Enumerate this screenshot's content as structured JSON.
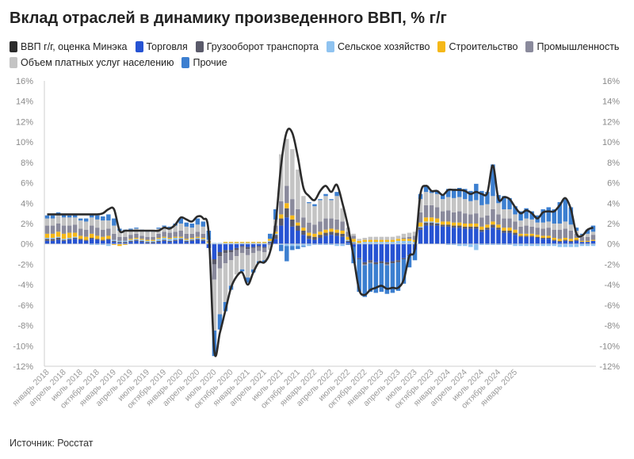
{
  "title": "Вклад отраслей в динамику произведенного ВВП, % г/г",
  "source": "Источник: Росстат",
  "chart_data": {
    "type": "bar",
    "stacked": true,
    "title": "Вклад отраслей в динамику произведенного ВВП, % г/г",
    "ylim": [
      -12,
      16
    ],
    "yticks": [
      -12,
      -10,
      -8,
      -6,
      -4,
      -2,
      0,
      2,
      4,
      6,
      8,
      10,
      12,
      14,
      16
    ],
    "ytick_labels_left": [
      "-12%",
      "-10%",
      "-8%",
      "-6%",
      "-4%",
      "-2%",
      "0%",
      "2%",
      "4%",
      "6%",
      "8%",
      "10%",
      "12%",
      "14%",
      "16%"
    ],
    "ytick_labels_right": [
      "-12%",
      "-10%",
      "-8%",
      "-6%",
      "-4%",
      "-2%",
      "0%",
      "2%",
      "4%",
      "6%",
      "8%",
      "10%",
      "12%",
      "14%",
      "16%"
    ],
    "grid": false,
    "legend_position": "top",
    "x_tick_labels": [
      {
        "i": 0,
        "label": "январь 2018"
      },
      {
        "i": 3,
        "label": "апрель 2018"
      },
      {
        "i": 6,
        "label": "июль 2018"
      },
      {
        "i": 9,
        "label": "октябрь 2018"
      },
      {
        "i": 12,
        "label": "январь 2019"
      },
      {
        "i": 15,
        "label": "апрель 2019"
      },
      {
        "i": 18,
        "label": "июль 2019"
      },
      {
        "i": 21,
        "label": "октябрь 2019"
      },
      {
        "i": 24,
        "label": "январь 2020"
      },
      {
        "i": 27,
        "label": "апрель 2020"
      },
      {
        "i": 30,
        "label": "июль 2020"
      },
      {
        "i": 33,
        "label": "октябрь 2020"
      },
      {
        "i": 36,
        "label": "январь 2021"
      },
      {
        "i": 39,
        "label": "апрель 2021"
      },
      {
        "i": 42,
        "label": "июль 2021"
      },
      {
        "i": 45,
        "label": "октябрь 2021"
      },
      {
        "i": 48,
        "label": "январь 2022"
      },
      {
        "i": 51,
        "label": "апрель 2022"
      },
      {
        "i": 54,
        "label": "июль 2022"
      },
      {
        "i": 57,
        "label": "октябрь 2022"
      },
      {
        "i": 60,
        "label": "январь 2023"
      },
      {
        "i": 63,
        "label": "апрель 2023"
      },
      {
        "i": 66,
        "label": "июль 2023"
      },
      {
        "i": 69,
        "label": "октябрь 2023"
      },
      {
        "i": 72,
        "label": "январь 2024"
      },
      {
        "i": 75,
        "label": "апрель 2024"
      },
      {
        "i": 78,
        "label": "июль 2024"
      },
      {
        "i": 81,
        "label": "октябрь 2024"
      },
      {
        "i": 84,
        "label": "январь 2025"
      }
    ],
    "series": [
      {
        "name": "ВВП г/г, оценка Минэка",
        "kind": "line",
        "color": "#2b2b2b",
        "values": [
          2.9,
          2.9,
          2.9,
          2.9,
          2.9,
          2.9,
          2.9,
          2.9,
          2.9,
          2.9,
          3.0,
          3.4,
          3.4,
          1.3,
          1.3,
          1.3,
          1.3,
          1.3,
          1.3,
          1.3,
          1.3,
          1.6,
          1.5,
          1.9,
          2.6,
          2.4,
          2.2,
          2.7,
          2.5,
          1.0,
          -10.5,
          -8.7,
          -6.5,
          -4.3,
          -3.2,
          -2.8,
          -4.0,
          -2.8,
          -1.8,
          -1.8,
          -0.8,
          2.0,
          7.8,
          11.0,
          10.9,
          8.5,
          5.5,
          4.7,
          4.3,
          5.2,
          5.7,
          5.1,
          5.8,
          4.0,
          1.7,
          -1.3,
          -4.5,
          -5.0,
          -4.5,
          -4.3,
          -4.1,
          -4.4,
          -4.3,
          -4.3,
          -3.5,
          -1.2,
          -0.5,
          4.9,
          5.7,
          5.2,
          5.2,
          4.8,
          5.3,
          5.3,
          5.3,
          5.2,
          4.9,
          5.1,
          4.9,
          5.0,
          7.7,
          4.4,
          4.6,
          4.4,
          3.6,
          3.0,
          3.3,
          3.0,
          2.5,
          3.1,
          3.2,
          3.2,
          3.8,
          4.5,
          3.4,
          1.0,
          0.8,
          1.4,
          1.6
        ]
      },
      {
        "name": "Торговля",
        "kind": "bar",
        "color": "#2653d3",
        "values": [
          0.3,
          0.3,
          0.4,
          0.3,
          0.4,
          0.5,
          0.4,
          0.3,
          0.5,
          0.4,
          0.3,
          0.4,
          0.2,
          0.1,
          0.1,
          0.2,
          0.3,
          0.2,
          0.1,
          0.1,
          0.2,
          0.3,
          0.2,
          0.3,
          0.4,
          0.2,
          0.3,
          0.4,
          0.3,
          -0.4,
          -1.5,
          -0.8,
          -0.6,
          -0.6,
          -0.4,
          -0.2,
          -0.3,
          -0.3,
          -0.2,
          -0.3,
          0.1,
          0.5,
          1.8,
          2.6,
          1.7,
          1.3,
          0.9,
          0.5,
          0.4,
          0.6,
          0.8,
          0.9,
          0.8,
          0.7,
          0.2,
          -0.3,
          -1.4,
          -1.8,
          -1.6,
          -1.8,
          -1.7,
          -1.8,
          -1.7,
          -1.6,
          -1.4,
          -1.1,
          -0.6,
          1.4,
          1.8,
          1.8,
          1.8,
          1.7,
          1.7,
          1.6,
          1.6,
          1.5,
          1.5,
          1.5,
          1.2,
          1.4,
          1.6,
          1.4,
          1.1,
          1.1,
          0.9,
          0.7,
          0.7,
          0.7,
          0.6,
          0.5,
          0.5,
          0.3,
          0.2,
          0.3,
          0.2,
          0.3,
          0.2,
          0.2,
          0.3
        ]
      },
      {
        "name": "Грузооборот транспорта",
        "kind": "bar",
        "color": "#5a5a6a",
        "values": [
          0.2,
          0.2,
          0.2,
          0.1,
          0.1,
          0.1,
          0.1,
          0.1,
          0.1,
          0.1,
          0.1,
          0.1,
          0.1,
          0.1,
          0.1,
          0.1,
          0.1,
          0.1,
          0.1,
          0.1,
          0.1,
          0.1,
          0.1,
          0.1,
          0.1,
          0.1,
          0.1,
          0.1,
          0.1,
          0.0,
          -0.5,
          -0.4,
          -0.3,
          -0.2,
          -0.2,
          -0.1,
          -0.2,
          -0.1,
          -0.1,
          -0.1,
          0.1,
          0.4,
          0.7,
          0.9,
          0.7,
          0.5,
          0.4,
          0.3,
          0.3,
          0.3,
          0.3,
          0.3,
          0.3,
          0.3,
          0.1,
          0.1,
          -0.1,
          -0.2,
          -0.2,
          -0.2,
          -0.2,
          -0.2,
          -0.2,
          -0.2,
          -0.1,
          -0.1,
          0.0,
          0.2,
          0.3,
          0.3,
          0.2,
          0.2,
          0.2,
          0.2,
          0.2,
          0.2,
          0.2,
          0.2,
          0.2,
          0.2,
          0.3,
          0.2,
          0.2,
          0.2,
          0.2,
          0.1,
          0.1,
          0.1,
          0.1,
          0.1,
          0.1,
          0.1,
          0.1,
          0.1,
          0.1,
          0.1,
          0.0,
          0.0,
          0.0
        ]
      },
      {
        "name": "Сельское хозяйство",
        "kind": "bar",
        "color": "#8fc3f0",
        "values": [
          0.1,
          0.1,
          0.1,
          0.1,
          0.1,
          0.1,
          0.0,
          0.0,
          -0.1,
          -0.1,
          -0.1,
          -0.2,
          0.1,
          0.1,
          0.1,
          0.1,
          0.1,
          0.1,
          0.1,
          0.1,
          0.2,
          0.2,
          0.2,
          0.2,
          0.1,
          0.1,
          0.1,
          0.1,
          0.1,
          0.1,
          0.1,
          0.1,
          0.1,
          0.1,
          0.1,
          0.1,
          0.1,
          0.1,
          0.1,
          0.1,
          0.1,
          0.1,
          -0.1,
          -0.2,
          -0.2,
          -0.2,
          -0.2,
          -0.2,
          -0.1,
          -0.1,
          -0.1,
          -0.1,
          -0.2,
          -0.2,
          0.1,
          0.1,
          0.1,
          0.2,
          0.2,
          0.2,
          0.2,
          0.2,
          0.2,
          0.3,
          0.3,
          0.3,
          0.2,
          0.1,
          0.1,
          0.1,
          0.1,
          0.0,
          -0.1,
          -0.1,
          -0.2,
          -0.2,
          -0.3,
          -0.6,
          -0.1,
          -0.1,
          -0.1,
          -0.1,
          -0.1,
          -0.1,
          -0.2,
          -0.2,
          -0.2,
          -0.2,
          -0.2,
          -0.2,
          -0.2,
          -0.2,
          -0.3,
          -0.3,
          -0.3,
          -0.3,
          -0.2,
          -0.2,
          -0.2
        ]
      },
      {
        "name": "Строительство",
        "kind": "bar",
        "color": "#f5b819",
        "values": [
          0.4,
          0.4,
          0.5,
          0.5,
          0.5,
          0.4,
          0.3,
          0.3,
          0.4,
          0.3,
          0.3,
          0.3,
          -0.1,
          -0.2,
          -0.1,
          0.1,
          0.1,
          0.1,
          0.1,
          0.1,
          0.1,
          0.1,
          0.1,
          0.1,
          0.1,
          0.1,
          0.1,
          0.1,
          0.1,
          0.1,
          0.0,
          0.0,
          0.1,
          0.1,
          0.1,
          0.1,
          0.1,
          0.1,
          0.1,
          0.1,
          0.2,
          0.2,
          0.4,
          0.5,
          0.4,
          0.3,
          0.3,
          0.3,
          0.3,
          0.3,
          0.3,
          0.3,
          0.3,
          0.3,
          0.3,
          0.3,
          0.2,
          0.2,
          0.2,
          0.2,
          0.2,
          0.2,
          0.2,
          0.2,
          0.2,
          0.2,
          0.2,
          0.4,
          0.4,
          0.4,
          0.4,
          0.3,
          0.3,
          0.3,
          0.3,
          0.3,
          0.3,
          0.3,
          0.3,
          0.3,
          0.3,
          0.3,
          0.3,
          0.3,
          0.3,
          0.2,
          0.2,
          0.2,
          0.2,
          0.2,
          0.2,
          0.2,
          0.2,
          0.2,
          0.2,
          0.2,
          0.1,
          0.1,
          0.1
        ]
      },
      {
        "name": "Промышленность",
        "kind": "bar",
        "color": "#8a8a9c",
        "values": [
          0.8,
          0.8,
          0.8,
          0.8,
          0.7,
          0.8,
          0.7,
          0.7,
          0.8,
          0.8,
          0.7,
          0.7,
          0.6,
          0.4,
          0.4,
          0.4,
          0.4,
          0.3,
          0.3,
          0.3,
          0.4,
          0.5,
          0.5,
          0.5,
          0.6,
          0.5,
          0.4,
          0.5,
          0.4,
          0.1,
          -1.5,
          -1.2,
          -1.0,
          -0.8,
          -0.6,
          -0.6,
          -0.6,
          -0.5,
          -0.4,
          -0.4,
          -0.1,
          0.6,
          1.3,
          1.7,
          1.6,
          1.3,
          1.0,
          1.0,
          0.9,
          1.0,
          1.1,
          1.0,
          1.0,
          0.9,
          0.5,
          0.3,
          0.0,
          -0.1,
          -0.1,
          0.0,
          0.0,
          -0.1,
          0.0,
          0.0,
          0.1,
          0.2,
          0.4,
          1.0,
          1.2,
          1.2,
          1.1,
          1.0,
          1.1,
          1.0,
          1.1,
          1.0,
          0.9,
          1.0,
          0.9,
          0.9,
          1.2,
          1.0,
          0.9,
          0.9,
          0.8,
          0.7,
          0.8,
          0.7,
          0.7,
          0.7,
          0.8,
          0.8,
          0.9,
          0.9,
          0.8,
          0.4,
          0.4,
          0.4,
          0.5
        ]
      },
      {
        "name": "Объем платных услуг населению",
        "kind": "bar",
        "color": "#c4c4c4",
        "values": [
          0.7,
          0.7,
          0.8,
          0.8,
          0.8,
          0.7,
          0.8,
          0.8,
          0.8,
          0.8,
          0.9,
          0.8,
          0.8,
          0.6,
          0.6,
          0.5,
          0.5,
          0.5,
          0.5,
          0.5,
          0.5,
          0.5,
          0.5,
          0.6,
          0.7,
          0.7,
          0.6,
          0.7,
          0.7,
          0.1,
          -5.0,
          -4.5,
          -3.8,
          -2.5,
          -1.8,
          -1.6,
          -2.2,
          -1.6,
          -1.0,
          -0.8,
          -0.5,
          0.6,
          4.6,
          4.6,
          4.9,
          3.9,
          2.1,
          1.9,
          1.8,
          2.1,
          2.2,
          1.8,
          2.3,
          1.3,
          0.4,
          0.2,
          0.2,
          0.2,
          0.3,
          0.3,
          0.3,
          0.3,
          0.3,
          0.3,
          0.4,
          0.4,
          0.4,
          1.3,
          1.3,
          1.2,
          1.3,
          1.2,
          1.3,
          1.4,
          1.4,
          1.4,
          1.3,
          1.3,
          1.2,
          1.1,
          1.3,
          1.1,
          0.9,
          0.9,
          0.7,
          0.6,
          0.7,
          0.7,
          0.5,
          0.6,
          0.6,
          0.6,
          0.6,
          0.7,
          0.6,
          0.3,
          0.2,
          0.3,
          0.3
        ]
      },
      {
        "name": "Прочие",
        "kind": "bar",
        "color": "#3c7fd0",
        "values": [
          0.3,
          0.3,
          0.3,
          0.3,
          0.2,
          0.3,
          0.2,
          0.3,
          0.3,
          0.4,
          0.4,
          0.6,
          0.7,
          0.2,
          0.1,
          0.1,
          0.1,
          0.1,
          0.1,
          0.1,
          0.1,
          0.1,
          0.1,
          0.2,
          0.5,
          0.4,
          0.4,
          0.6,
          0.5,
          0.9,
          -2.5,
          -1.5,
          -0.9,
          -0.4,
          0.0,
          -0.2,
          -0.5,
          -0.3,
          -0.2,
          -0.2,
          0.5,
          1.0,
          -0.6,
          -1.5,
          -0.4,
          -0.3,
          -0.1,
          0.1,
          0.2,
          0.1,
          0.2,
          0.1,
          0.4,
          0.0,
          -0.1,
          -1.6,
          -3.2,
          -3.1,
          -2.8,
          -2.8,
          -2.8,
          -2.8,
          -2.9,
          -2.8,
          -2.4,
          -1.1,
          -1.0,
          0.5,
          0.6,
          0.2,
          0.3,
          0.4,
          0.8,
          0.9,
          0.9,
          1.0,
          1.0,
          1.6,
          1.4,
          1.2,
          3.1,
          0.8,
          1.3,
          1.1,
          0.8,
          0.9,
          1.0,
          0.8,
          0.7,
          1.3,
          1.4,
          1.4,
          2.1,
          2.2,
          1.7,
          0.3,
          0.1,
          0.4,
          0.6
        ]
      }
    ]
  }
}
